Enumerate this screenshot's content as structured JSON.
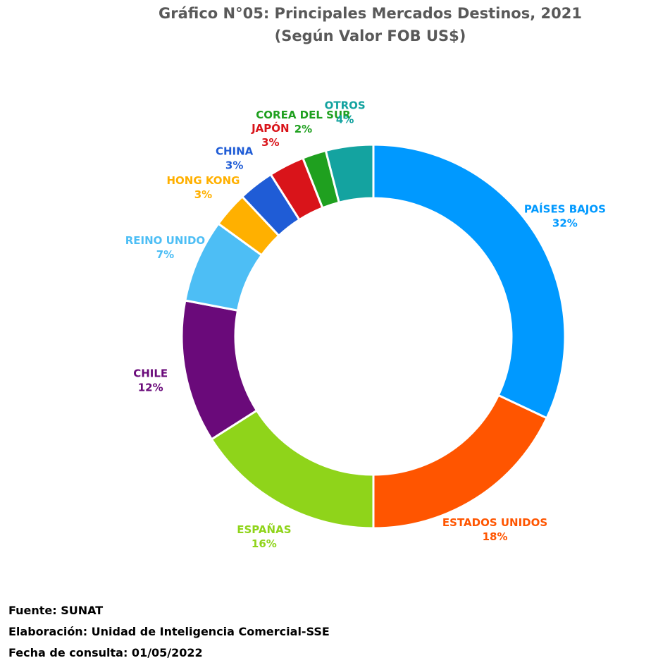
{
  "title": {
    "line1": "Gráfico N°05: Principales Mercados Destinos, 2021",
    "line2": "(Según Valor FOB US$)"
  },
  "chart_data": {
    "type": "pie",
    "variant": "donut",
    "start_angle_deg": 0,
    "direction": "clockwise",
    "slices": [
      {
        "label": "PAÍSES BAJOS",
        "value": 32,
        "value_label": "32%",
        "color": "#0099FF"
      },
      {
        "label": "ESTADOS UNIDOS",
        "value": 18,
        "value_label": "18%",
        "color": "#FF5500"
      },
      {
        "label": "ESPAÑAS",
        "value": 16,
        "value_label": "16%",
        "color": "#8FD41A"
      },
      {
        "label": "CHILE",
        "value": 12,
        "value_label": "12%",
        "color": "#6A0A7A"
      },
      {
        "label": "REINO UNIDO",
        "value": 7,
        "value_label": "7%",
        "color": "#4DBEF5"
      },
      {
        "label": "HONG KONG",
        "value": 3,
        "value_label": "3%",
        "color": "#FFB000"
      },
      {
        "label": "CHINA",
        "value": 3,
        "value_label": "3%",
        "color": "#1F5CD6"
      },
      {
        "label": "JAPÓN",
        "value": 3,
        "value_label": "3%",
        "color": "#D9141A"
      },
      {
        "label": "COREA DEL SUR",
        "value": 2,
        "value_label": "2%",
        "color": "#1FA01F"
      },
      {
        "label": "OTROS",
        "value": 4,
        "value_label": "4%",
        "color": "#14A3A0"
      }
    ],
    "legend": "none"
  },
  "footer": {
    "source": "Fuente: SUNAT",
    "elaboration": "Elaboración: Unidad de Inteligencia Comercial-SSE",
    "date": "Fecha de consulta: 01/05/2022"
  }
}
